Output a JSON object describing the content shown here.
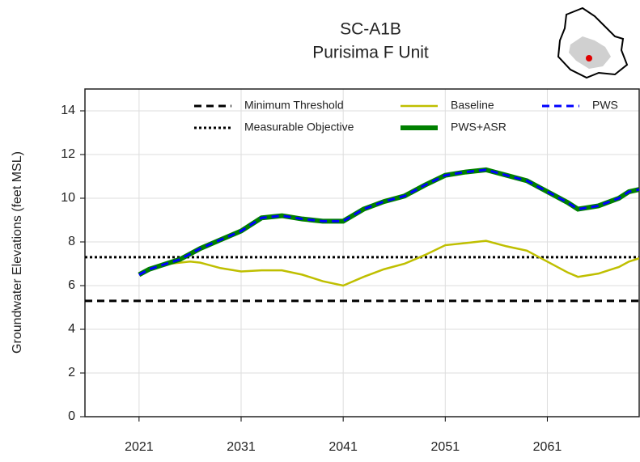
{
  "chart_data": {
    "type": "line",
    "title": "SC-A1B",
    "subtitle": "Purisima F Unit",
    "y_label": "Groundwater Elevations (feet MSL)",
    "xlim": [
      2015.7,
      2070
    ],
    "xticks": [
      2021,
      2031,
      2041,
      2051,
      2061
    ],
    "ylim": [
      0,
      15
    ],
    "yticks": [
      0,
      2,
      4,
      6,
      8,
      10,
      12,
      14
    ],
    "grid": true,
    "hlines": [
      {
        "name": "Minimum Threshold",
        "value": 5.3,
        "color": "#000000",
        "style": "dashed",
        "linewidth": 3
      },
      {
        "name": "Measurable Objective",
        "value": 7.3,
        "color": "#000000",
        "style": "dotted",
        "linewidth": 3
      }
    ],
    "x": [
      2021,
      2022,
      2023,
      2024,
      2025,
      2026,
      2027,
      2029,
      2031,
      2033,
      2035,
      2037,
      2039,
      2041,
      2043,
      2045,
      2047,
      2049,
      2051,
      2053,
      2055,
      2057,
      2059,
      2061,
      2063,
      2064,
      2066,
      2068,
      2069,
      2070
    ],
    "series": [
      {
        "name": "Baseline",
        "color": "#bfbf00",
        "style": "solid",
        "linewidth": 2.5,
        "values": [
          6.5,
          6.8,
          6.9,
          7.0,
          7.05,
          7.1,
          7.05,
          6.8,
          6.65,
          6.7,
          6.7,
          6.5,
          6.2,
          6.0,
          6.4,
          6.75,
          7.0,
          7.4,
          7.85,
          7.95,
          8.05,
          7.8,
          7.6,
          7.1,
          6.6,
          6.4,
          6.55,
          6.85,
          7.1,
          7.25
        ]
      },
      {
        "name": "PWS+ASR",
        "color": "#008000",
        "style": "solid",
        "linewidth": 6,
        "values": [
          6.5,
          6.75,
          6.9,
          7.05,
          7.2,
          7.45,
          7.7,
          8.1,
          8.5,
          9.1,
          9.2,
          9.05,
          8.95,
          8.95,
          9.5,
          9.85,
          10.1,
          10.6,
          11.05,
          11.2,
          11.3,
          11.05,
          10.8,
          10.3,
          9.8,
          9.5,
          9.65,
          10.0,
          10.3,
          10.4
        ]
      },
      {
        "name": "PWS",
        "color": "#0000ff",
        "style": "dashed",
        "linewidth": 3,
        "values": [
          6.5,
          6.75,
          6.9,
          7.05,
          7.2,
          7.45,
          7.7,
          8.1,
          8.5,
          9.1,
          9.2,
          9.05,
          8.95,
          8.95,
          9.5,
          9.85,
          10.1,
          10.6,
          11.05,
          11.2,
          11.3,
          11.05,
          10.8,
          10.3,
          9.8,
          9.5,
          9.65,
          10.0,
          10.3,
          10.4
        ]
      }
    ]
  }
}
